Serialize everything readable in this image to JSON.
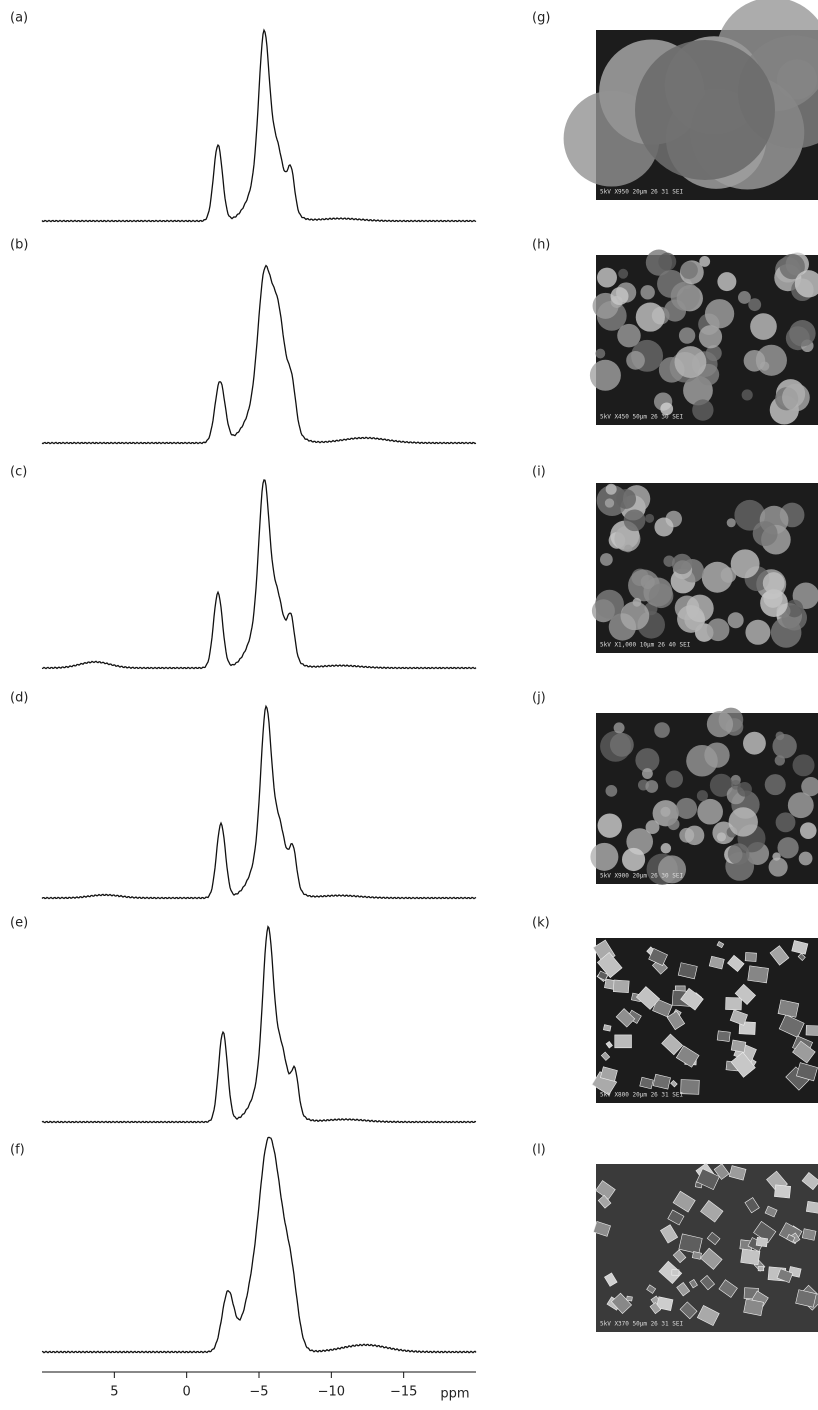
{
  "panels": [
    "(a)",
    "(b)",
    "(c)",
    "(d)",
    "(e)",
    "(f)"
  ],
  "x_axis": {
    "xlim": [
      10,
      -20
    ],
    "ticks": [
      5,
      0,
      {
        "value": -5,
        "label": "−5"
      },
      {
        "value": -10,
        "label": "−10"
      },
      {
        "value": -15,
        "label": "−15"
      }
    ],
    "label": "ppm"
  },
  "images": [
    {
      "label": "(g)",
      "caption": "5kV X950 20µm 26 31 SEI"
    },
    {
      "label": "(h)",
      "caption": "5kV X450 50µm 26 30 SEI"
    },
    {
      "label": "(i)",
      "caption": "5kV X1,000 10µm 26 40 SEI"
    },
    {
      "label": "(j)",
      "caption": "5kV X900 20µm 26 30 SEI"
    },
    {
      "label": "(k)",
      "caption": "5kV X800 20µm 26 31 SEI"
    },
    {
      "label": "(l)",
      "caption": "5kV X370 50µm 26 31 SEI"
    }
  ]
}
